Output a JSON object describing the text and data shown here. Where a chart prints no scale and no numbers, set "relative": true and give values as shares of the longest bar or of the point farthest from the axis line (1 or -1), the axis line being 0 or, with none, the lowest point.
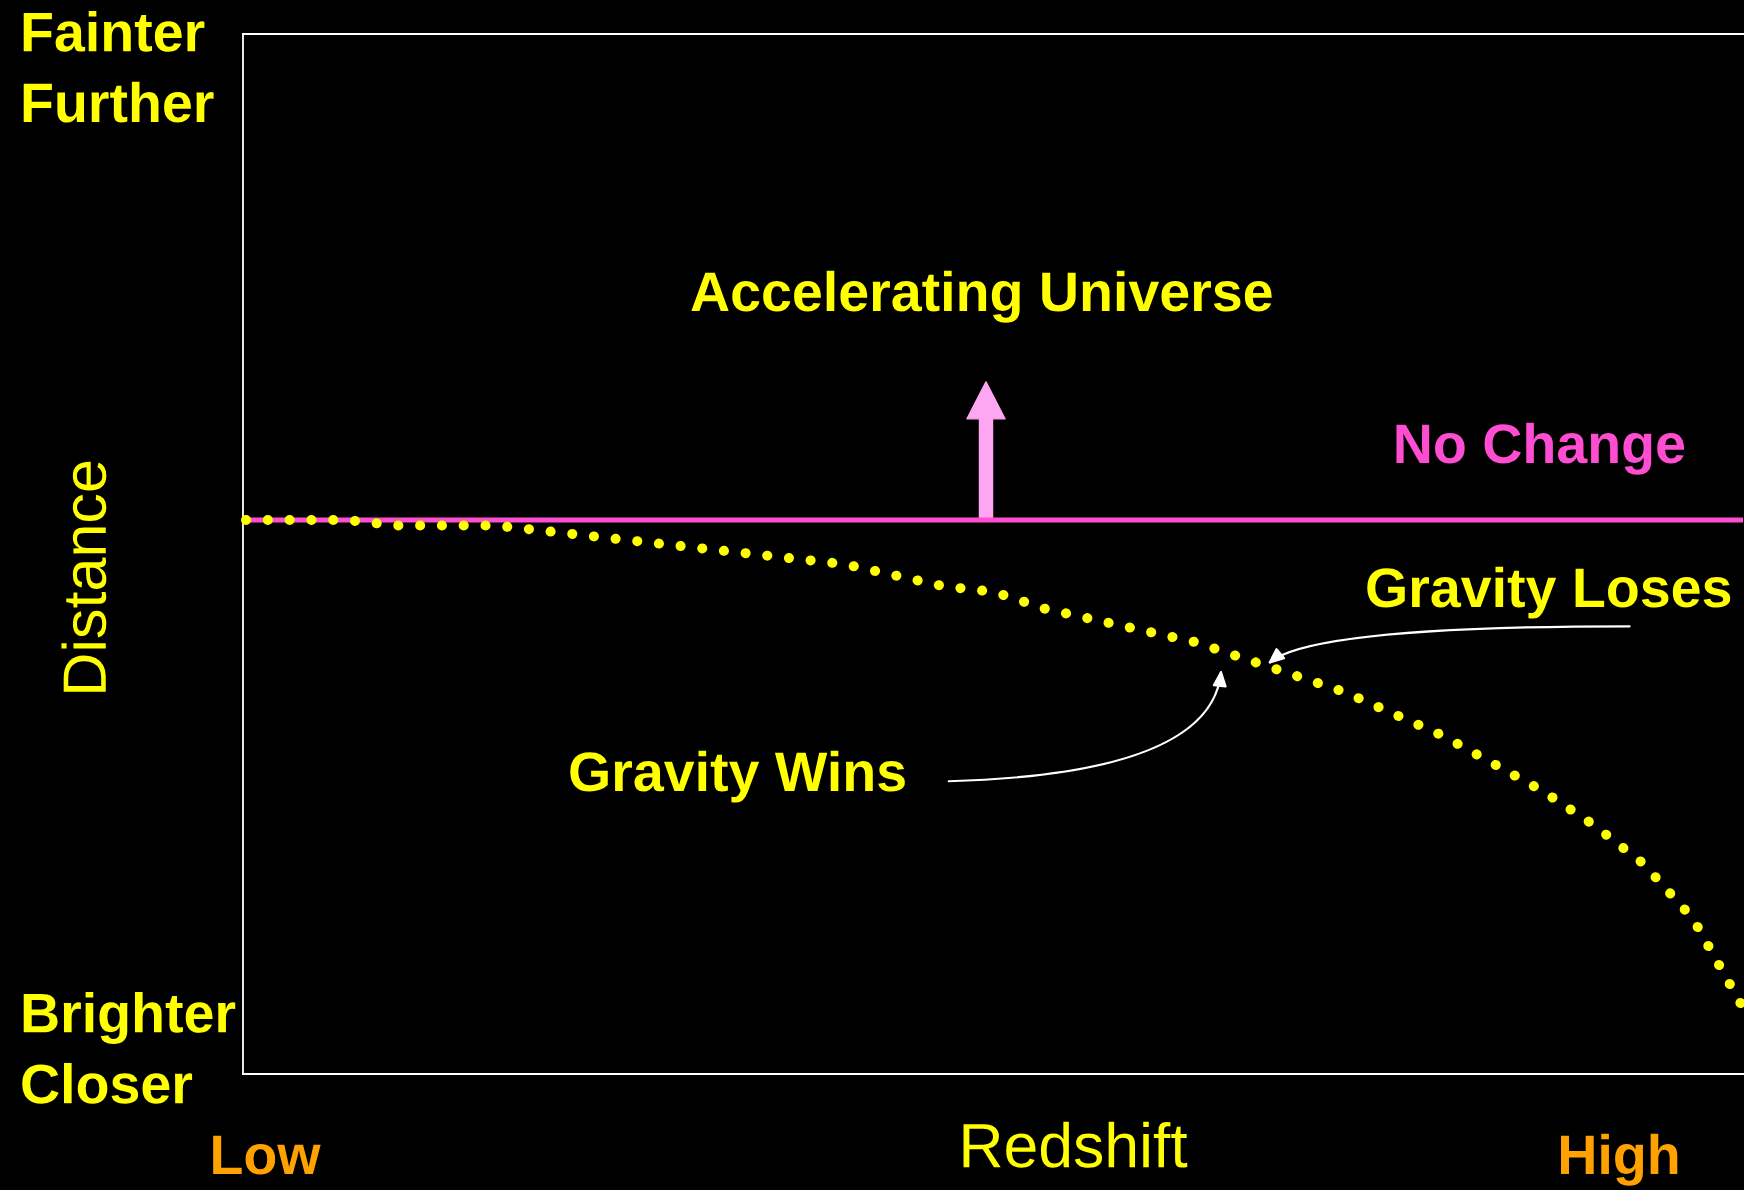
{
  "chart_data": {
    "type": "line",
    "relative": true,
    "xlabel": "Redshift",
    "ylabel": "Distance",
    "categories": [
      null,
      null,
      null,
      null,
      null,
      null,
      null,
      null,
      null,
      null,
      null,
      null,
      null,
      null,
      null,
      null,
      null,
      null,
      null,
      null,
      null,
      null,
      null,
      null,
      null,
      null,
      null,
      null,
      null,
      null,
      null
    ],
    "series": [
      {
        "name": "No Change",
        "color": "#ff4dd2",
        "line_style": "solid",
        "values": [
          1,
          1,
          1,
          1,
          1,
          1,
          1,
          1,
          1,
          1,
          1,
          1,
          1,
          1,
          1,
          1,
          1,
          1,
          1,
          1,
          1,
          1,
          1,
          1,
          1,
          1,
          1,
          1,
          1,
          1,
          1
        ]
      },
      {
        "color": "#ffff00",
        "line_style": "dotted",
        "values": [
          1.0,
          1.0,
          1.0,
          0.99,
          0.99,
          0.99,
          0.98,
          0.97,
          0.96,
          0.95,
          0.94,
          0.93,
          0.92,
          0.9,
          0.88,
          0.87,
          0.84,
          0.82,
          0.8,
          0.78,
          0.75,
          0.72,
          0.69,
          0.65,
          0.61,
          0.56,
          0.51,
          0.45,
          0.38,
          0.28,
          0.12
        ]
      }
    ],
    "annotations": [
      "Fainter\nFurther",
      "Brighter\nCloser",
      "Low",
      "High",
      "Accelerating Universe",
      "Gravity Wins",
      "Gravity Loses"
    ]
  }
}
